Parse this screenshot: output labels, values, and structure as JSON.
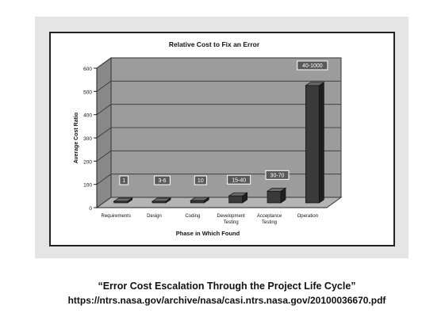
{
  "chart_data": {
    "type": "bar",
    "title": "Relative Cost to Fix an Error",
    "xlabel": "Phase in Which Found",
    "ylabel": "Average Cost Ratio",
    "ylim": [
      0,
      600
    ],
    "yticks": [
      0,
      100,
      200,
      300,
      400,
      500,
      600
    ],
    "categories": [
      "Requirements",
      "Design",
      "Coding",
      "Development Testing",
      "Acceptance Testing",
      "Operation"
    ],
    "category_lines": [
      [
        "Requirements"
      ],
      [
        "Design"
      ],
      [
        "Coding"
      ],
      [
        "Development",
        "Testing"
      ],
      [
        "Acceptance",
        "Testing"
      ],
      [
        "Operation"
      ]
    ],
    "values": [
      1,
      5,
      10,
      30,
      50,
      505
    ],
    "data_labels": [
      "1",
      "3-6",
      "10",
      "15-40",
      "30-70",
      "40-1000"
    ],
    "grid": true,
    "three_d": true
  },
  "colors": {
    "bar_front": "#3a3a3a",
    "bar_side": "#1f1f1f",
    "bar_top": "#6a6a6a",
    "wall": "#9c9c9c",
    "floor": "#b4b4b4",
    "label_box": "#5a5a5a",
    "scan_bg": "#e4e5e4"
  },
  "caption": {
    "title": "“Error Cost Escalation Through the Project Life Cycle”",
    "url": "https://ntrs.nasa.gov/archive/nasa/casi.ntrs.nasa.gov/20100036670.pdf"
  }
}
